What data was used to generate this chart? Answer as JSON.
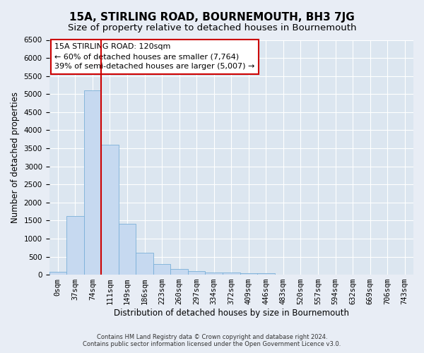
{
  "title": "15A, STIRLING ROAD, BOURNEMOUTH, BH3 7JG",
  "subtitle": "Size of property relative to detached houses in Bournemouth",
  "xlabel": "Distribution of detached houses by size in Bournemouth",
  "ylabel": "Number of detached properties",
  "footer_line1": "Contains HM Land Registry data © Crown copyright and database right 2024.",
  "footer_line2": "Contains public sector information licensed under the Open Government Licence v3.0.",
  "bar_values": [
    75,
    1625,
    5100,
    3600,
    1400,
    600,
    300,
    150,
    100,
    60,
    60,
    50,
    50,
    0,
    0,
    0,
    0,
    0,
    0,
    0
  ],
  "bar_labels": [
    "0sqm",
    "37sqm",
    "74sqm",
    "111sqm",
    "149sqm",
    "186sqm",
    "223sqm",
    "260sqm",
    "297sqm",
    "334sqm",
    "372sqm",
    "409sqm",
    "446sqm",
    "483sqm",
    "520sqm",
    "557sqm",
    "594sqm",
    "632sqm",
    "669sqm",
    "706sqm",
    "743sqm"
  ],
  "ylim": [
    0,
    6500
  ],
  "yticks": [
    0,
    500,
    1000,
    1500,
    2000,
    2500,
    3000,
    3500,
    4000,
    4500,
    5000,
    5500,
    6000,
    6500
  ],
  "bar_color": "#c6d9f0",
  "bar_edge_color": "#7ab0d8",
  "vline_color": "#cc0000",
  "annotation_text": "15A STIRLING ROAD: 120sqm\n← 60% of detached houses are smaller (7,764)\n39% of semi-detached houses are larger (5,007) →",
  "annotation_box_color": "#ffffff",
  "annotation_box_edge": "#cc0000",
  "bg_color": "#e8edf5",
  "plot_bg_color": "#dce6f0",
  "grid_color": "#ffffff",
  "title_fontsize": 11,
  "subtitle_fontsize": 9.5,
  "label_fontsize": 8.5,
  "tick_fontsize": 7.5,
  "annot_fontsize": 8
}
